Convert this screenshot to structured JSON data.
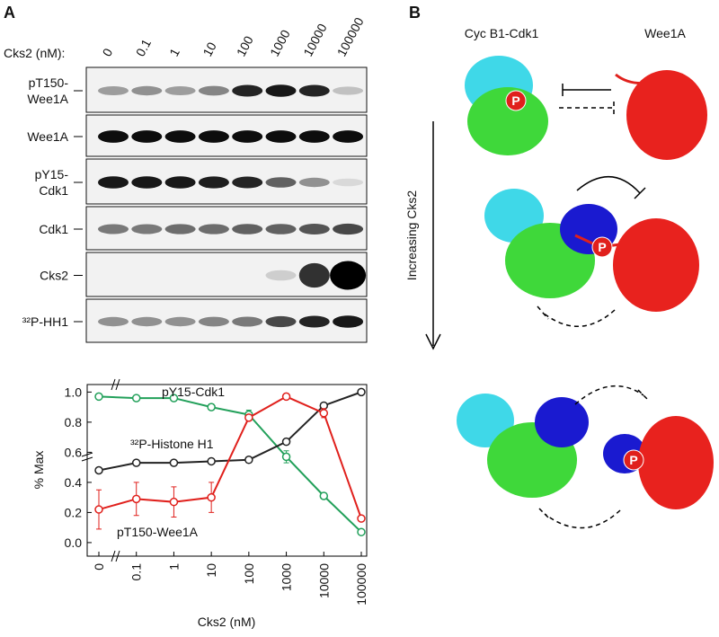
{
  "panel_a": {
    "label": "A",
    "lane_header": "Cks2 (nM):",
    "lanes": [
      "0",
      "0.1",
      "1",
      "10",
      "100",
      "1000",
      "10000",
      "100000"
    ],
    "row_labels": [
      [
        "pT150-",
        "Wee1A"
      ],
      [
        "Wee1A"
      ],
      [
        "pY15-",
        "Cdk1"
      ],
      [
        "Cdk1"
      ],
      [
        "Cks2"
      ],
      [
        "³²P-HH1"
      ]
    ]
  },
  "chart_data": {
    "type": "line",
    "y_label": "% Max",
    "x_label": "Cks2 (nM)",
    "categories": [
      "0",
      "0.1",
      "1",
      "10",
      "100",
      "1000",
      "10000",
      "100000"
    ],
    "ylim": [
      -0.09,
      1.05
    ],
    "yticks": [
      {
        "value": 0,
        "label": "0.0"
      },
      0.2,
      0.4,
      0.6,
      0.8,
      {
        "value": 1,
        "label": "1.0"
      }
    ],
    "series": [
      {
        "name": "pY15-Cdk1",
        "color": "#22a05a",
        "values": [
          0.97,
          0.96,
          0.96,
          0.9,
          0.85,
          0.57,
          0.31,
          0.07
        ],
        "errors": [
          0.01,
          0.01,
          0.01,
          0.02,
          0.03,
          0.04,
          0.02,
          0.01
        ]
      },
      {
        "name": "³²P-Histone H1",
        "color": "#222222",
        "values": [
          0.48,
          0.53,
          0.53,
          0.54,
          0.55,
          0.67,
          0.91,
          1.0
        ]
      },
      {
        "name": "pT150-Wee1A",
        "color": "#e0201c",
        "values": [
          0.22,
          0.29,
          0.27,
          0.3,
          0.83,
          0.97,
          0.86,
          0.16
        ],
        "errors": [
          0.13,
          0.11,
          0.1,
          0.1,
          0.02,
          0.01,
          0.03,
          0.01
        ]
      }
    ]
  },
  "panel_b": {
    "label": "B",
    "complex": "Cyc B1-Cdk1",
    "kinase": "Wee1A",
    "arrow_label": "Increasing Cks2",
    "phospho": [
      "P",
      "P",
      "P"
    ]
  }
}
